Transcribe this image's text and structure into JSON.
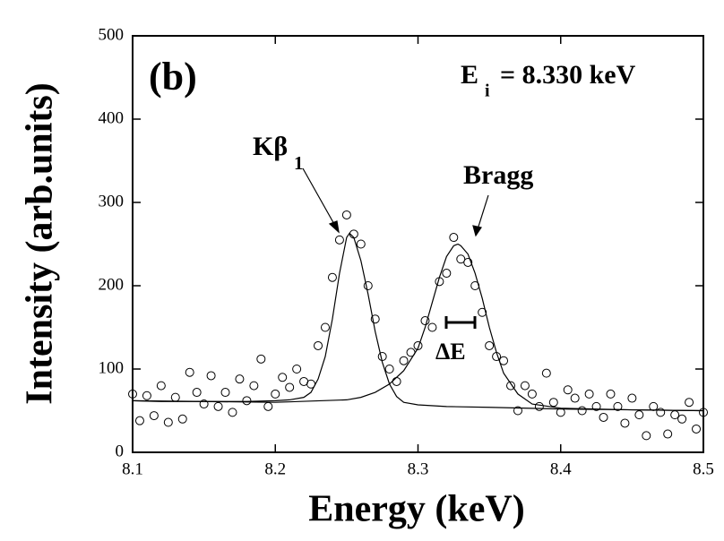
{
  "chart_data": {
    "type": "scatter",
    "xlabel": "Energy (keV)",
    "ylabel": "Intensity (arb.units)",
    "panel_label": "(b)",
    "energy_label": {
      "main": "E",
      "sub": "i",
      "rest": "= 8.330 keV"
    },
    "annotations": {
      "kb_main": "Kβ",
      "kb_sub": "1",
      "bragg": "Bragg",
      "delta_e": "ΔE"
    },
    "xlim": [
      8.1,
      8.5
    ],
    "ylim": [
      0,
      500
    ],
    "xticks": [
      8.1,
      8.2,
      8.3,
      8.4,
      8.5
    ],
    "yticks": [
      0,
      100,
      200,
      300,
      400,
      500
    ],
    "series": [
      {
        "style": "open-circle",
        "color": "#000000",
        "x": [
          8.1,
          8.105,
          8.11,
          8.115,
          8.12,
          8.125,
          8.13,
          8.135,
          8.14,
          8.145,
          8.15,
          8.155,
          8.16,
          8.165,
          8.17,
          8.175,
          8.18,
          8.185,
          8.19,
          8.195,
          8.2,
          8.205,
          8.21,
          8.215,
          8.22,
          8.225,
          8.23,
          8.235,
          8.24,
          8.245,
          8.25,
          8.255,
          8.26,
          8.265,
          8.27,
          8.275,
          8.28,
          8.285,
          8.29,
          8.295,
          8.3,
          8.305,
          8.31,
          8.315,
          8.32,
          8.325,
          8.33,
          8.335,
          8.34,
          8.345,
          8.35,
          8.355,
          8.36,
          8.365,
          8.37,
          8.375,
          8.38,
          8.385,
          8.39,
          8.395,
          8.4,
          8.405,
          8.41,
          8.415,
          8.42,
          8.425,
          8.43,
          8.435,
          8.44,
          8.445,
          8.45,
          8.455,
          8.46,
          8.465,
          8.47,
          8.475,
          8.48,
          8.485,
          8.49,
          8.495,
          8.5
        ],
        "values": [
          70,
          38,
          68,
          44,
          80,
          36,
          66,
          40,
          96,
          72,
          58,
          92,
          55,
          72,
          48,
          88,
          62,
          80,
          112,
          55,
          70,
          90,
          78,
          100,
          85,
          82,
          128,
          150,
          210,
          255,
          285,
          262,
          250,
          200,
          160,
          115,
          100,
          85,
          110,
          120,
          128,
          158,
          150,
          205,
          215,
          258,
          232,
          228,
          200,
          168,
          128,
          115,
          110,
          80,
          50,
          80,
          70,
          55,
          95,
          60,
          48,
          75,
          65,
          50,
          70,
          55,
          42,
          70,
          55,
          35,
          65,
          45,
          20,
          55,
          48,
          22,
          45,
          40,
          60,
          28,
          48
        ]
      },
      {
        "style": "line",
        "color": "#000000",
        "x": [
          8.1,
          8.12,
          8.14,
          8.16,
          8.18,
          8.2,
          8.21,
          8.22,
          8.225,
          8.23,
          8.235,
          8.24,
          8.245,
          8.25,
          8.252,
          8.255,
          8.26,
          8.265,
          8.27,
          8.275,
          8.28,
          8.285,
          8.29,
          8.3,
          8.32,
          8.35,
          8.4,
          8.45,
          8.5
        ],
        "values": [
          62,
          61,
          61,
          61,
          61,
          62,
          63,
          66,
          72,
          88,
          115,
          160,
          215,
          258,
          263,
          258,
          230,
          190,
          145,
          108,
          82,
          67,
          60,
          57,
          55,
          54,
          52,
          51,
          50
        ]
      },
      {
        "style": "line",
        "color": "#000000",
        "x": [
          8.1,
          8.15,
          8.2,
          8.25,
          8.26,
          8.27,
          8.28,
          8.29,
          8.3,
          8.305,
          8.31,
          8.315,
          8.32,
          8.325,
          8.328,
          8.33,
          8.335,
          8.34,
          8.345,
          8.35,
          8.355,
          8.36,
          8.37,
          8.38,
          8.4,
          8.45,
          8.5
        ],
        "values": [
          62,
          61,
          60,
          63,
          66,
          72,
          82,
          98,
          125,
          150,
          180,
          210,
          235,
          248,
          250,
          248,
          238,
          215,
          185,
          150,
          120,
          95,
          70,
          58,
          53,
          51,
          50
        ]
      }
    ]
  }
}
